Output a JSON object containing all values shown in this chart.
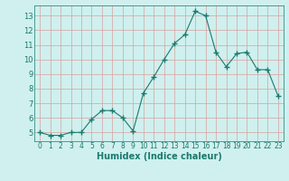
{
  "x": [
    0,
    1,
    2,
    3,
    4,
    5,
    6,
    7,
    8,
    9,
    10,
    11,
    12,
    13,
    14,
    15,
    16,
    17,
    18,
    19,
    20,
    21,
    22,
    23
  ],
  "y": [
    5.0,
    4.8,
    4.8,
    5.0,
    5.0,
    5.9,
    6.5,
    6.5,
    6.0,
    5.1,
    7.7,
    8.8,
    10.0,
    11.1,
    11.7,
    13.3,
    13.0,
    10.5,
    9.5,
    10.4,
    10.5,
    9.3,
    9.3,
    7.5
  ],
  "xlabel": "Humidex (Indice chaleur)",
  "xlim": [
    -0.5,
    23.5
  ],
  "ylim": [
    4.4,
    13.7
  ],
  "yticks": [
    5,
    6,
    7,
    8,
    9,
    10,
    11,
    12,
    13
  ],
  "xticks": [
    0,
    1,
    2,
    3,
    4,
    5,
    6,
    7,
    8,
    9,
    10,
    11,
    12,
    13,
    14,
    15,
    16,
    17,
    18,
    19,
    20,
    21,
    22,
    23
  ],
  "line_color": "#1a7a6e",
  "marker": "+",
  "marker_size": 4,
  "bg_color": "#cff0ee",
  "grid_color": "#d8a0a0",
  "axis_bg": "#cff0ee"
}
